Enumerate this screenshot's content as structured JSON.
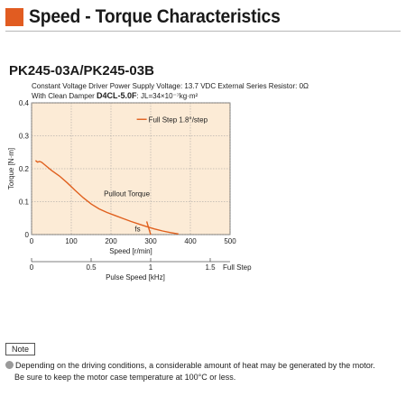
{
  "header": {
    "title": "Speed - Torque Characteristics",
    "accent_color": "#e15c21"
  },
  "model": "PK245-03A/PK245-03B",
  "conditions": {
    "line1": "Constant Voltage Driver   Power Supply Voltage: 13.7 VDC   External Series Resistor: 0Ω",
    "line2_prefix": "With Clean Damper ",
    "line2_bold": "D4CL-5.0F",
    "line2_suffix": ": JL=34×10⁻⁷kg·m²"
  },
  "chart_data": {
    "type": "line",
    "plot_bg": "#fcebd6",
    "line_color": "#e0601e",
    "ylabel": "Torque [N·m]",
    "xlabel": "Speed [r/min]",
    "x2label": "Pulse Speed [kHz]",
    "x2_suffix": "Full Step",
    "xlim": [
      0,
      500
    ],
    "ylim": [
      0,
      0.4
    ],
    "x_ticks": [
      "0",
      "100",
      "200",
      "300",
      "400",
      "500"
    ],
    "y_ticks": [
      "0",
      "0.1",
      "0.2",
      "0.3",
      "0.4"
    ],
    "x2_ticks": [
      "0",
      "0.5",
      "1",
      "1.5"
    ],
    "x2_values": [
      0,
      0.5,
      1,
      1.5
    ],
    "grid": true,
    "legend": "Full Step 1.8°/step",
    "annotations": {
      "pullout": "Pullout Torque",
      "fs": "fs"
    },
    "series": [
      {
        "name": "Full Step 1.8°/step",
        "x": [
          10,
          15,
          20,
          25,
          30,
          50,
          70,
          90,
          110,
          130,
          150,
          170,
          190,
          210,
          230,
          250,
          270,
          290,
          310,
          330,
          350,
          370
        ],
        "y": [
          0.225,
          0.22,
          0.222,
          0.22,
          0.215,
          0.195,
          0.178,
          0.157,
          0.134,
          0.112,
          0.093,
          0.078,
          0.067,
          0.058,
          0.049,
          0.04,
          0.032,
          0.024,
          0.017,
          0.011,
          0.006,
          0.002
        ]
      }
    ],
    "fs_marker": {
      "x": [
        290,
        300
      ],
      "y": [
        0.04,
        0.0
      ]
    }
  },
  "note": {
    "label": "Note",
    "line1": "Depending on the driving conditions, a considerable amount of heat may be generated by the motor.",
    "line2": "Be sure to keep the motor case temperature at 100°C or less."
  }
}
